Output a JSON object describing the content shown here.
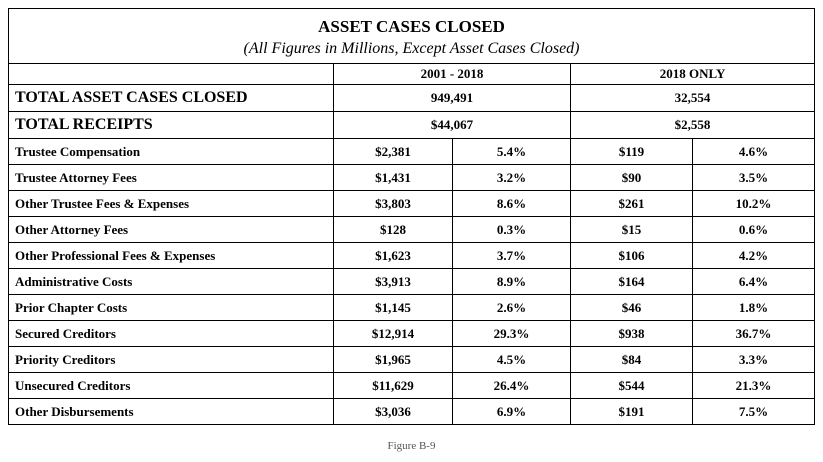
{
  "title": "ASSET CASES CLOSED",
  "subtitle": "(All Figures in Millions, Except Asset Cases Closed)",
  "periods": [
    "2001 - 2018",
    "2018 ONLY"
  ],
  "totals": [
    {
      "label": "TOTAL ASSET CASES CLOSED",
      "p1": "949,491",
      "p2": "32,554"
    },
    {
      "label": "TOTAL RECEIPTS",
      "p1": "$44,067",
      "p2": "$2,558"
    }
  ],
  "rows": [
    {
      "label": "Trustee Compensation",
      "a1": "$2,381",
      "b1": "5.4%",
      "a2": "$119",
      "b2": "4.6%"
    },
    {
      "label": "Trustee Attorney Fees",
      "a1": "$1,431",
      "b1": "3.2%",
      "a2": "$90",
      "b2": "3.5%"
    },
    {
      "label": "Other Trustee Fees & Expenses",
      "a1": "$3,803",
      "b1": "8.6%",
      "a2": "$261",
      "b2": "10.2%"
    },
    {
      "label": "Other Attorney Fees",
      "a1": "$128",
      "b1": "0.3%",
      "a2": "$15",
      "b2": "0.6%"
    },
    {
      "label": "Other Professional Fees & Expenses",
      "a1": "$1,623",
      "b1": "3.7%",
      "a2": "$106",
      "b2": "4.2%"
    },
    {
      "label": "Administrative Costs",
      "a1": "$3,913",
      "b1": "8.9%",
      "a2": "$164",
      "b2": "6.4%"
    },
    {
      "label": "Prior Chapter Costs",
      "a1": "$1,145",
      "b1": "2.6%",
      "a2": "$46",
      "b2": "1.8%"
    },
    {
      "label": "Secured Creditors",
      "a1": "$12,914",
      "b1": "29.3%",
      "a2": "$938",
      "b2": "36.7%"
    },
    {
      "label": "Priority Creditors",
      "a1": "$1,965",
      "b1": "4.5%",
      "a2": "$84",
      "b2": "3.3%"
    },
    {
      "label": "Unsecured Creditors",
      "a1": "$11,629",
      "b1": "26.4%",
      "a2": "$544",
      "b2": "21.3%"
    },
    {
      "label": "Other Disbursements",
      "a1": "$3,036",
      "b1": "6.9%",
      "a2": "$191",
      "b2": "7.5%"
    }
  ],
  "caption": "Figure B-9"
}
